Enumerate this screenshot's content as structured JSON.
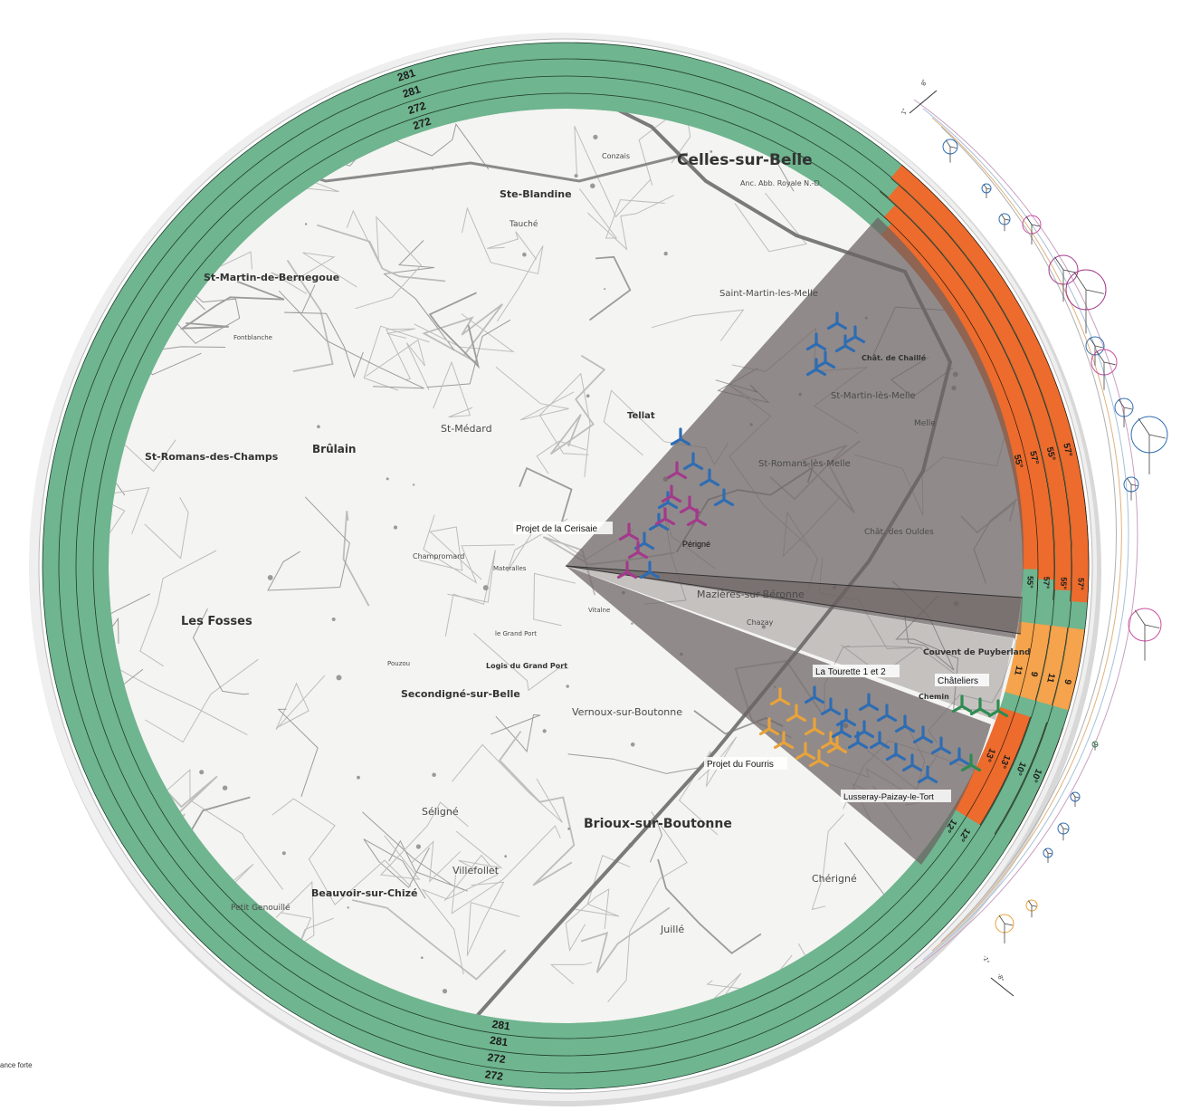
{
  "colors": {
    "ring_green": "#6fb58f",
    "ring_orange": "#ec6b2d",
    "ring_light_orange": "#f5a34c",
    "sector_grey": "#6b6161",
    "turbine_blue": "#2e6db3",
    "turbine_purple": "#a33a8b",
    "turbine_orange": "#e8a33a",
    "turbine_green": "#2e8b52",
    "road_main": "#7a7a7a",
    "map_bg": "#f4f4f2"
  },
  "rings": {
    "green_top": [
      "272",
      "272",
      "281",
      "281"
    ],
    "green_bottom": [
      "281",
      "281",
      "272",
      "272"
    ],
    "orange_upper_top": [
      "55°",
      "57°",
      "55°",
      "57°"
    ],
    "orange_upper_bottom": [
      "55°",
      "57°",
      "55°",
      "57°"
    ],
    "green_right": [
      "11",
      "9",
      "11",
      "9"
    ],
    "light_orange": [
      "13°",
      "13°",
      "10°",
      "10°"
    ],
    "orange_lower": [
      "12°",
      "12°"
    ]
  },
  "callouts": {
    "cerisaie": "Projet de la Cerisaie",
    "tourette": "La Tourette 1 et 2",
    "chateliers": "Châteliers",
    "fourris": "Projet du Fourris",
    "lusseray": "Lusseray-Paizay-le-Tort",
    "perigne": "Périgné"
  },
  "towns": [
    "Celles-sur-Belle",
    "Anc. Abb. Royale N.-D.",
    "Ste-Blandine",
    "Tauché",
    "Conzais",
    "St-Martin-de-Bernegoue",
    "Saint-Martin-les-Melle",
    "Chât. de Chaillé",
    "St-Martin-lès-Melle",
    "Tellat",
    "St-Médard",
    "St-Romans-des-Champs",
    "Brûlain",
    "St-Romans-lès-Melle",
    "Chât. des Ouldes",
    "Mazières-sur-Béronne",
    "Chazay",
    "Couvent de Puyberland",
    "Les Fosses",
    "Secondigné-sur-Belle",
    "Logis du Grand Port",
    "Vernoux-sur-Boutonne",
    "Séligné",
    "Brioux-sur-Boutonne",
    "Villefollet",
    "Juillé",
    "Chérigné",
    "Beauvoir-sur-Chizé",
    "Petit Genouillé",
    "Champromard",
    "Pouzou",
    "Vitalne",
    "Fontblanche",
    "le Grand Port",
    "Materalles",
    "Chemin",
    "Melle"
  ],
  "side_ticks": {
    "upper": [
      "8°",
      "1°"
    ],
    "lower": [
      "-1°",
      "-8°"
    ]
  },
  "legend_fragment": "ance forte"
}
